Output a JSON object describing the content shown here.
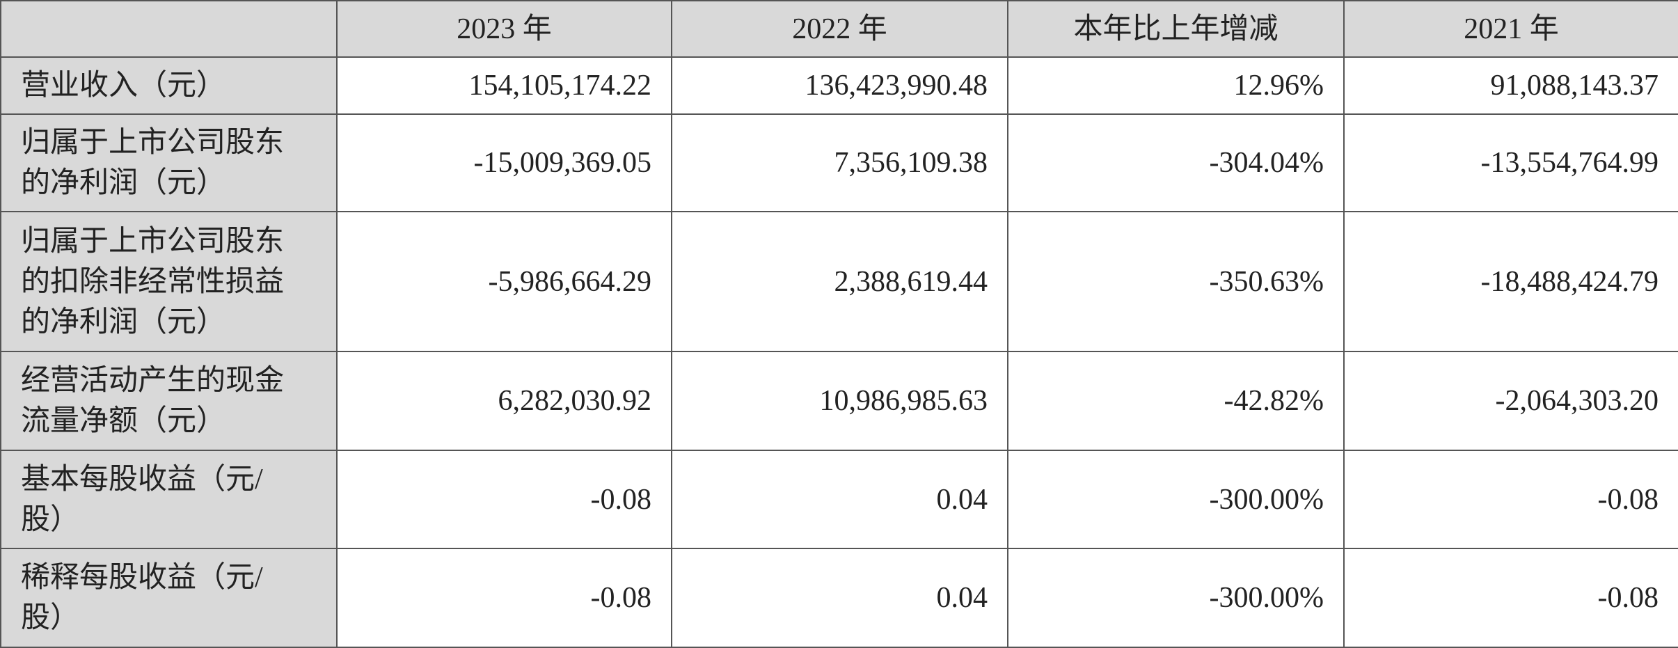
{
  "table": {
    "header": [
      "",
      "2023 年",
      "2022 年",
      "本年比上年增减",
      "2021 年"
    ],
    "rows": [
      [
        "营业收入（元）",
        "154,105,174.22",
        "136,423,990.48",
        "12.96%",
        "91,088,143.37"
      ],
      [
        "归属于上市公司股东的净利润（元）",
        "-15,009,369.05",
        "7,356,109.38",
        "-304.04%",
        "-13,554,764.99"
      ],
      [
        "归属于上市公司股东的扣除非经常性损益的净利润（元）",
        "-5,986,664.29",
        "2,388,619.44",
        "-350.63%",
        "-18,488,424.79"
      ],
      [
        "经营活动产生的现金流量净额（元）",
        "6,282,030.92",
        "10,986,985.63",
        "-42.82%",
        "-2,064,303.20"
      ],
      [
        "基本每股收益（元/股）",
        "-0.08",
        "0.04",
        "-300.00%",
        "-0.08"
      ],
      [
        "稀释每股收益（元/股）",
        "-0.08",
        "0.04",
        "-300.00%",
        "-0.08"
      ]
    ]
  }
}
